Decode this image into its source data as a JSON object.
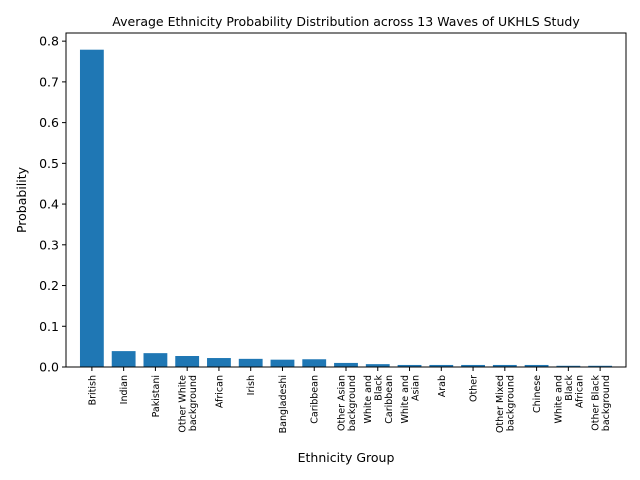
{
  "chart_data": {
    "type": "bar",
    "title": "Average Ethnicity Probability Distribution across 13 Waves of UKHLS Study",
    "xlabel": "Ethnicity Group",
    "ylabel": "Probability",
    "ylim": [
      0,
      0.82
    ],
    "yticks": [
      0.0,
      0.1,
      0.2,
      0.3,
      0.4,
      0.5,
      0.6,
      0.7,
      0.8
    ],
    "ytick_labels": [
      "0.0",
      "0.1",
      "0.2",
      "0.3",
      "0.4",
      "0.5",
      "0.6",
      "0.7",
      "0.8"
    ],
    "grid": false,
    "bar_color": "#1f77b4",
    "categories": [
      [
        "British"
      ],
      [
        "Indian"
      ],
      [
        "Pakistani"
      ],
      [
        "Other White",
        "background"
      ],
      [
        "African"
      ],
      [
        "Irish"
      ],
      [
        "Bangladeshi"
      ],
      [
        "Caribbean"
      ],
      [
        "Other Asian",
        "background"
      ],
      [
        "White and",
        "Black",
        "Caribbean"
      ],
      [
        "White and",
        "Asian"
      ],
      [
        "Arab"
      ],
      [
        "Other"
      ],
      [
        "Other Mixed",
        "background"
      ],
      [
        "Chinese"
      ],
      [
        "White and",
        "Black",
        "African"
      ],
      [
        "Other Black",
        "background"
      ]
    ],
    "values": [
      0.779,
      0.039,
      0.034,
      0.027,
      0.022,
      0.02,
      0.018,
      0.019,
      0.01,
      0.007,
      0.005,
      0.005,
      0.005,
      0.005,
      0.005,
      0.003,
      0.003
    ]
  }
}
